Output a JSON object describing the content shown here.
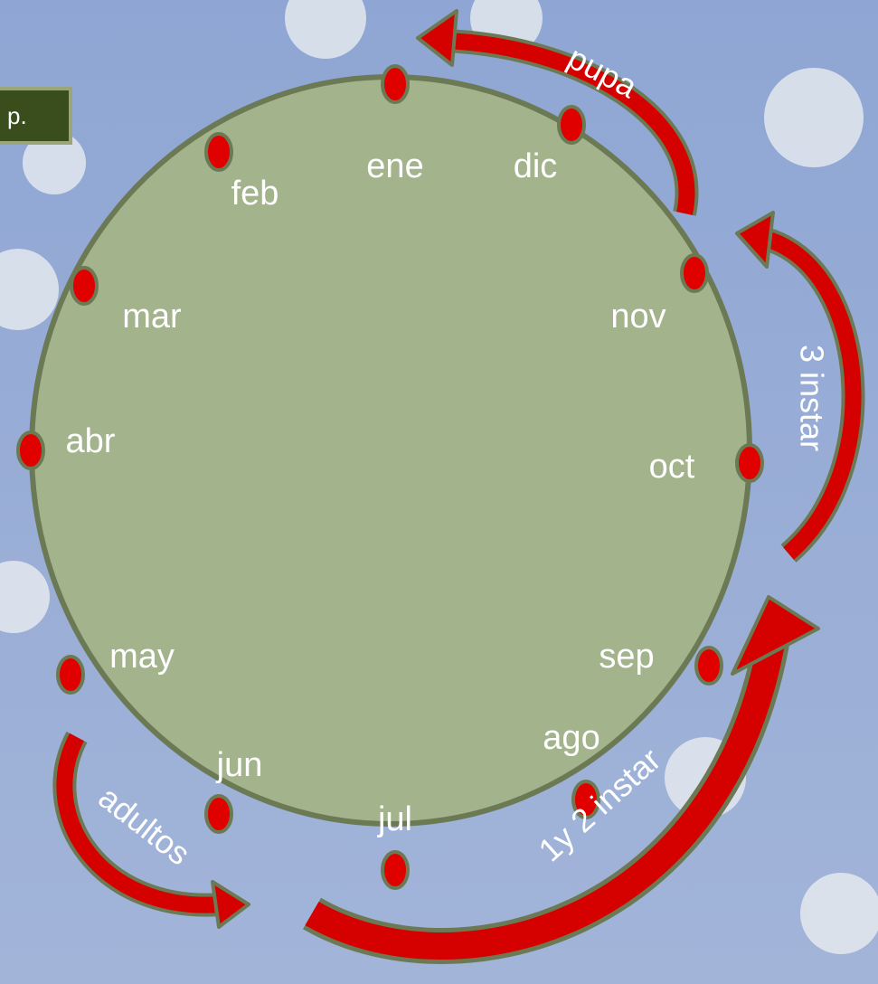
{
  "box": {
    "text": "p."
  },
  "months": [
    {
      "label": "ene"
    },
    {
      "label": "feb"
    },
    {
      "label": "mar"
    },
    {
      "label": "abr"
    },
    {
      "label": "may"
    },
    {
      "label": "jun"
    },
    {
      "label": "jul"
    },
    {
      "label": "ago"
    },
    {
      "label": "sep"
    },
    {
      "label": "oct"
    },
    {
      "label": "nov"
    },
    {
      "label": "dic"
    }
  ],
  "phases": [
    {
      "label": "pupa"
    },
    {
      "label": "3 instar"
    },
    {
      "label": "1y 2 instar"
    },
    {
      "label": "adultos"
    }
  ]
}
